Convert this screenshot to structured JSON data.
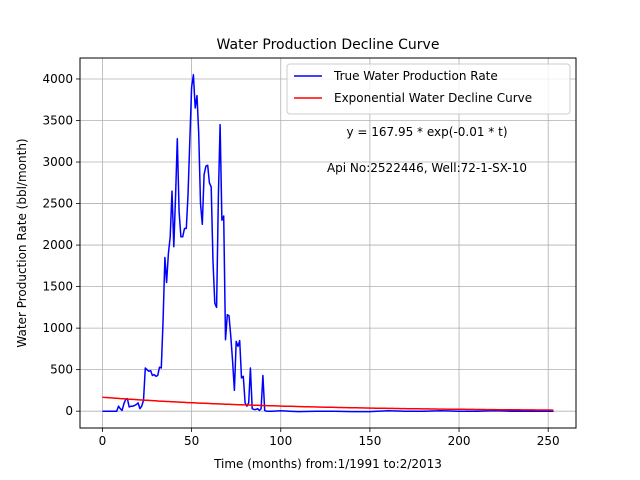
{
  "chart_data": {
    "type": "line",
    "title": "Water Production Decline Curve",
    "xlabel": "Time (months) from:1/1991 to:2/2013",
    "ylabel": "Water Production Rate (bbl/month)",
    "xlim": [
      -12.6,
      265.6
    ],
    "ylim": [
      -202.5,
      4252.5
    ],
    "xticks": [
      0,
      50,
      100,
      150,
      200,
      250
    ],
    "yticks": [
      0,
      500,
      1000,
      1500,
      2000,
      2500,
      3000,
      3500,
      4000
    ],
    "grid": true,
    "legend_position": "top-right",
    "annotations": [
      "y = 167.95 * exp(-0.01 * t)",
      "Api No:2522446, Well:72-1-SX-10"
    ],
    "series": [
      {
        "name": "True Water Production Rate",
        "color": "#0000ff",
        "x": [
          0,
          3,
          6,
          8,
          9,
          10,
          11,
          12,
          13,
          14,
          15,
          16,
          17,
          18,
          19,
          20,
          21,
          22,
          23,
          24,
          25,
          26,
          27,
          28,
          29,
          30,
          31,
          32,
          33,
          34,
          35,
          36,
          37,
          38,
          39,
          40,
          41,
          42,
          43,
          44,
          45,
          46,
          47,
          48,
          49,
          50,
          51,
          52,
          53,
          54,
          55,
          56,
          57,
          58,
          59,
          60,
          61,
          62,
          63,
          64,
          65,
          66,
          67,
          68,
          69,
          70,
          71,
          72,
          73,
          74,
          75,
          76,
          77,
          78,
          79,
          80,
          81,
          82,
          83,
          84,
          85,
          86,
          87,
          88,
          89,
          90,
          91,
          92,
          93,
          95,
          100,
          105,
          110,
          120,
          130,
          140,
          150,
          160,
          170,
          180,
          190,
          200,
          210,
          220,
          230,
          240,
          250,
          253
        ],
        "y": [
          0,
          0,
          0,
          0,
          60,
          30,
          10,
          90,
          140,
          150,
          50,
          60,
          60,
          70,
          80,
          100,
          30,
          60,
          130,
          520,
          500,
          480,
          490,
          430,
          440,
          420,
          430,
          530,
          520,
          1100,
          1850,
          1550,
          1900,
          2100,
          2650,
          1980,
          2600,
          3280,
          2400,
          2100,
          2100,
          2200,
          2200,
          2600,
          3250,
          3900,
          4050,
          3650,
          3800,
          3350,
          2500,
          2250,
          2850,
          2950,
          2960,
          2750,
          2700,
          1800,
          1300,
          1250,
          2600,
          3450,
          2300,
          2350,
          860,
          1160,
          1150,
          900,
          600,
          250,
          840,
          780,
          850,
          400,
          420,
          100,
          60,
          100,
          520,
          30,
          20,
          20,
          30,
          10,
          30,
          430,
          10,
          0,
          0,
          0,
          5,
          0,
          -5,
          0,
          0,
          -5,
          -5,
          5,
          0,
          0,
          5,
          0,
          0,
          5,
          0,
          0,
          0,
          0
        ]
      },
      {
        "name": "Exponential Water Decline Curve",
        "color": "#ff0000",
        "fn": "y = 167.95 * exp(-0.01 * t)",
        "x_range": [
          0,
          253
        ]
      }
    ]
  }
}
